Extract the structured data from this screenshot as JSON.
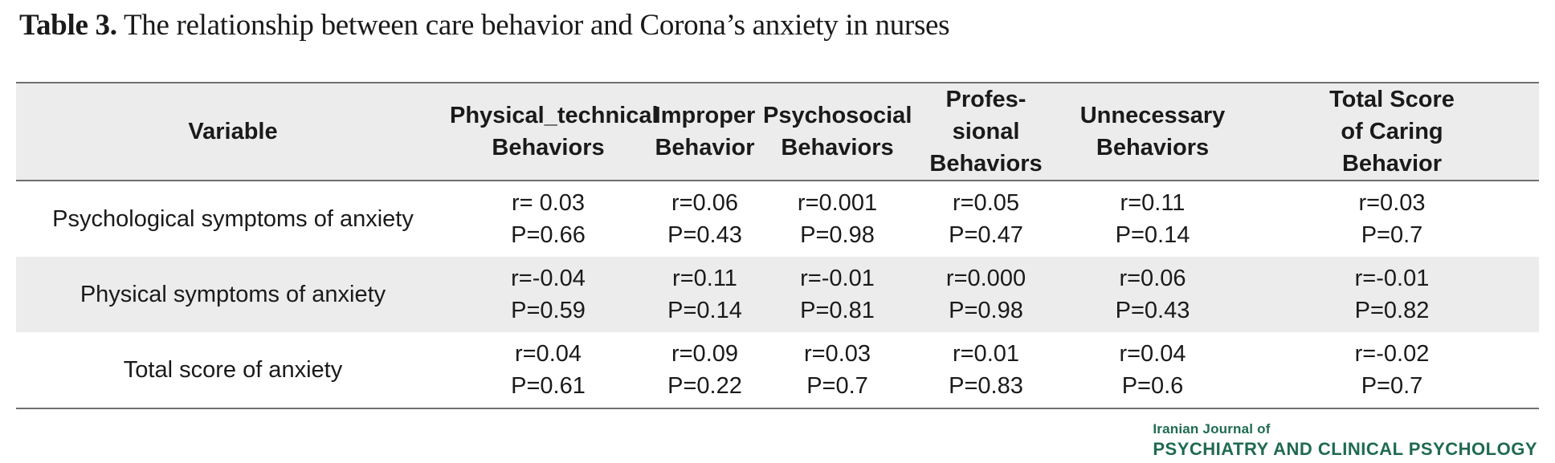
{
  "caption": {
    "label": "Table 3.",
    "text": "The relationship between care behavior and Corona’s anxiety in nurses"
  },
  "table": {
    "headers": [
      [
        "Variable"
      ],
      [
        "Physical_technical",
        "Behaviors"
      ],
      [
        "Improper",
        "Behavior"
      ],
      [
        "Psychosocial",
        "Behaviors"
      ],
      [
        "Profes-",
        "sional",
        "Behaviors"
      ],
      [
        "Unnecessary",
        "Behaviors"
      ],
      [
        "Total Score",
        "of Caring",
        "Behavior"
      ]
    ],
    "rows": [
      {
        "variable": "Psychological symptoms of anxiety",
        "cells": [
          [
            "r= 0.03",
            "P=0.66"
          ],
          [
            "r=0.06",
            "P=0.43"
          ],
          [
            "r=0.001",
            "P=0.98"
          ],
          [
            "r=0.05",
            "P=0.47"
          ],
          [
            "r=0.11",
            "P=0.14"
          ],
          [
            "r=0.03",
            "P=0.7"
          ]
        ]
      },
      {
        "variable": "Physical symptoms of anxiety",
        "cells": [
          [
            "r=-0.04",
            "P=0.59"
          ],
          [
            "r=0.11",
            "P=0.14"
          ],
          [
            "r=-0.01",
            "P=0.81"
          ],
          [
            "r=0.000",
            "P=0.98"
          ],
          [
            "r=0.06",
            "P=0.43"
          ],
          [
            "r=-0.01",
            "P=0.82"
          ]
        ]
      },
      {
        "variable": "Total score of anxiety",
        "cells": [
          [
            "r=0.04",
            "P=0.61"
          ],
          [
            "r=0.09",
            "P=0.22"
          ],
          [
            "r=0.03",
            "P=0.7"
          ],
          [
            "r=0.01",
            "P=0.83"
          ],
          [
            "r=0.04",
            "P=0.6"
          ],
          [
            "r=-0.02",
            "P=0.7"
          ]
        ]
      }
    ]
  },
  "journal": {
    "line1": "Iranian Journal of",
    "line2": "PSYCHIATRY AND CLINICAL PSYCHOLOGY"
  },
  "colors": {
    "header_bg": "#ececec",
    "shaded_row_bg": "#ececec",
    "rule": "#6f6f6f",
    "journal_green": "#1f6b50"
  }
}
